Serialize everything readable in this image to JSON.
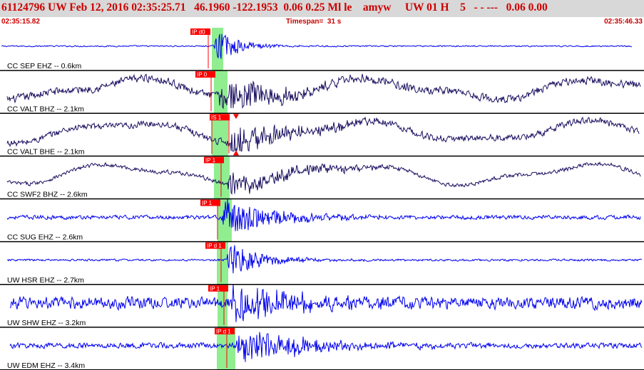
{
  "header": {
    "title": "61124796 UW Feb 12, 2016 02:35:25.71   46.1960 -122.1953  0.06 0.25 Ml le    amyw     UW 01 H    5   - - ---   0.06 0.00"
  },
  "subheader": {
    "start_time": "02:35:15.82",
    "timespan": "Timespan=  31 s",
    "end_time": "02:35:46.33"
  },
  "colors": {
    "blue_trace": "#0000ee",
    "dark_trace": "#1a1060",
    "pick": "#ff0000",
    "window": "#90ee90",
    "divider": "#000000"
  },
  "traces": [
    {
      "label": "CC SEP EHZ -- 0.6km",
      "pick": "IP d0",
      "color": "blue",
      "low_freq": false,
      "noise": 0.05,
      "amp": 0.85,
      "decay": 3.0
    },
    {
      "label": "CC VALT BHZ -- 2.1km",
      "pick": "IP 0",
      "color": "dark",
      "low_freq": true,
      "noise": 0.3,
      "amp": 0.8,
      "decay": 1.2
    },
    {
      "label": "CC VALT BHE -- 2.1km",
      "pick": "IS 1",
      "color": "dark",
      "low_freq": true,
      "noise": 0.25,
      "amp": 0.8,
      "decay": 1.2
    },
    {
      "label": "CC SWF2 BHZ -- 2.6km",
      "pick": "IP 1",
      "color": "dark",
      "low_freq": true,
      "noise": 0.15,
      "amp": 0.6,
      "decay": 1.0
    },
    {
      "label": "CC SUG EHZ -- 2.6km",
      "pick": "IP 1",
      "color": "blue",
      "low_freq": false,
      "noise": 0.15,
      "amp": 0.95,
      "decay": 1.4
    },
    {
      "label": "UW HSR EHZ -- 2.7km",
      "pick": "IP d 1",
      "color": "blue",
      "low_freq": false,
      "noise": 0.08,
      "amp": 0.9,
      "decay": 2.2
    },
    {
      "label": "UW SHW EHZ -- 3.2km",
      "pick": "IP 1",
      "color": "blue",
      "low_freq": false,
      "noise": 0.45,
      "amp": 0.95,
      "decay": 1.0
    },
    {
      "label": "UW EDM EHZ -- 3.4km",
      "pick": "IP d 1",
      "color": "blue",
      "low_freq": false,
      "noise": 0.2,
      "amp": 0.9,
      "decay": 1.0
    }
  ]
}
